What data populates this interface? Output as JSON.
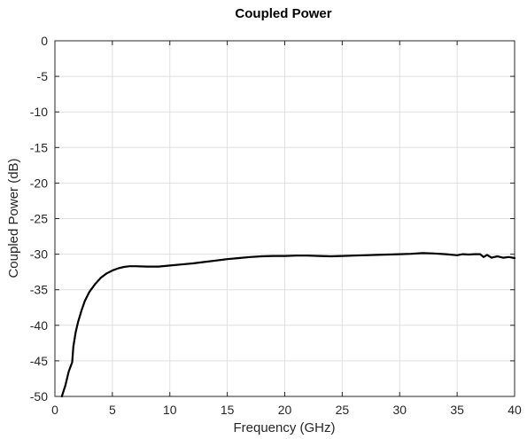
{
  "chart_data": {
    "type": "line",
    "title": "Coupled Power",
    "xlabel": "Frequency (GHz)",
    "ylabel": "Coupled Power (dB)",
    "xlim": [
      0,
      40
    ],
    "ylim": [
      -50,
      0
    ],
    "xticks": [
      0,
      5,
      10,
      15,
      20,
      25,
      30,
      35,
      40
    ],
    "yticks": [
      0,
      -5,
      -10,
      -15,
      -20,
      -25,
      -30,
      -35,
      -40,
      -45,
      -50
    ],
    "xtick_labels": [
      "0",
      "5",
      "10",
      "15",
      "20",
      "25",
      "30",
      "35",
      "40"
    ],
    "ytick_labels": [
      "0",
      "-5",
      "-10",
      "-15",
      "-20",
      "-25",
      "-30",
      "-35",
      "-40",
      "-45",
      "-50"
    ],
    "grid": true,
    "series": [
      {
        "color": "#000000",
        "x": [
          0.6,
          0.9,
          1.2,
          1.5,
          1.6,
          1.8,
          2.0,
          2.3,
          2.6,
          3.0,
          3.5,
          4.0,
          4.5,
          5.0,
          5.5,
          6.0,
          6.5,
          7.0,
          8.0,
          9.0,
          10.0,
          11.0,
          12.0,
          13.0,
          14.0,
          15.0,
          16.0,
          17.0,
          18.0,
          19.0,
          20.0,
          21.0,
          22.0,
          23.0,
          24.0,
          25.0,
          26.0,
          27.0,
          28.0,
          29.0,
          30.0,
          31.0,
          32.0,
          33.0,
          34.0,
          35.0,
          35.5,
          36.0,
          36.5,
          37.0,
          37.3,
          37.6,
          38.0,
          38.5,
          39.0,
          39.5,
          40.0
        ],
        "y": [
          -50.0,
          -48.5,
          -46.5,
          -45.2,
          -43.0,
          -41.0,
          -39.6,
          -38.0,
          -36.6,
          -35.3,
          -34.2,
          -33.3,
          -32.7,
          -32.3,
          -32.0,
          -31.8,
          -31.7,
          -31.7,
          -31.75,
          -31.75,
          -31.6,
          -31.45,
          -31.3,
          -31.1,
          -30.9,
          -30.7,
          -30.55,
          -30.4,
          -30.3,
          -30.25,
          -30.25,
          -30.2,
          -30.2,
          -30.25,
          -30.3,
          -30.25,
          -30.2,
          -30.15,
          -30.1,
          -30.05,
          -30.0,
          -29.95,
          -29.85,
          -29.9,
          -30.0,
          -30.15,
          -30.0,
          -30.05,
          -30.0,
          -30.0,
          -30.4,
          -30.1,
          -30.5,
          -30.3,
          -30.5,
          -30.4,
          -30.55
        ]
      }
    ]
  }
}
